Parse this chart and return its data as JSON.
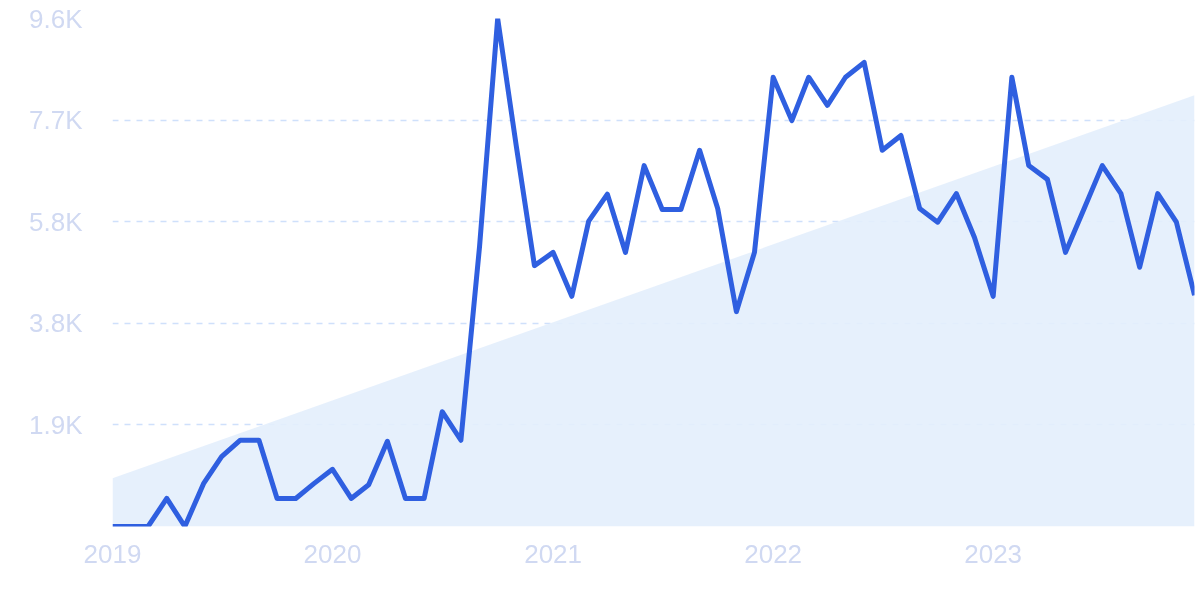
{
  "chart_data": {
    "type": "line",
    "x": [
      "2019-01",
      "2019-02",
      "2019-03",
      "2019-04",
      "2019-05",
      "2019-06",
      "2019-07",
      "2019-08",
      "2019-09",
      "2019-10",
      "2019-11",
      "2019-12",
      "2020-01",
      "2020-02",
      "2020-03",
      "2020-04",
      "2020-05",
      "2020-06",
      "2020-07",
      "2020-08",
      "2020-09",
      "2020-10",
      "2020-11",
      "2020-12",
      "2021-01",
      "2021-02",
      "2021-03",
      "2021-04",
      "2021-05",
      "2021-06",
      "2021-07",
      "2021-08",
      "2021-09",
      "2021-10",
      "2021-11",
      "2021-12",
      "2022-01",
      "2022-02",
      "2022-03",
      "2022-04",
      "2022-05",
      "2022-06",
      "2022-07",
      "2022-08",
      "2022-09",
      "2022-10",
      "2022-11",
      "2022-12",
      "2023-01",
      "2023-02",
      "2023-03",
      "2023-04",
      "2023-05",
      "2023-06",
      "2023-07",
      "2023-08",
      "2023-09",
      "2023-10",
      "2023-11",
      "2023-12"
    ],
    "series": [
      {
        "type": "area",
        "color": "#e3eefc",
        "x": [
          "2019-01",
          "2023-12"
        ],
        "values": [
          910,
          8150
        ]
      },
      {
        "color": "#2f5fe0",
        "values": [
          0,
          0,
          0,
          530,
          0,
          810,
          1320,
          1630,
          1630,
          530,
          530,
          810,
          1080,
          530,
          790,
          1610,
          530,
          530,
          2170,
          1630,
          5300,
          9600,
          7180,
          4930,
          5180,
          4350,
          5770,
          6280,
          5180,
          6820,
          5990,
          5990,
          7110,
          6010,
          4060,
          5180,
          8490,
          7670,
          8490,
          7960,
          8490,
          8770,
          7110,
          7390,
          6010,
          5750,
          6290,
          5460,
          4350,
          8490,
          6820,
          6560,
          5180,
          6010,
          6820,
          6290,
          4900,
          6290,
          5750,
          4370
        ]
      }
    ],
    "xlim": [
      "2019-01",
      "2023-12"
    ],
    "xticks": [
      "2019",
      "2020",
      "2021",
      "2022",
      "2023"
    ],
    "ylim": [
      0,
      9600
    ],
    "yticks": [
      {
        "value": 1920,
        "label": "1.9K"
      },
      {
        "value": 3840,
        "label": "3.8K"
      },
      {
        "value": 5760,
        "label": "5.8K"
      },
      {
        "value": 7680,
        "label": "7.7K"
      },
      {
        "value": 9600,
        "label": "9.6K"
      }
    ],
    "grid": "y",
    "line_style": "solid",
    "marker": "none"
  }
}
